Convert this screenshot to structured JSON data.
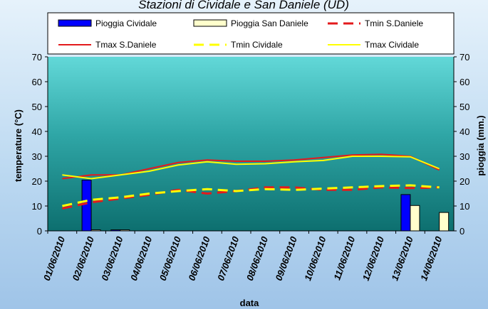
{
  "chart_data": {
    "type": "bar",
    "title": "Stazioni di Cividale e San Daniele (UD)",
    "xlabel": "data",
    "ylabel": "temperature (°C)",
    "y2label": "pioggia (mm.)",
    "ylim": [
      0,
      70
    ],
    "y2lim": [
      0,
      70
    ],
    "yticks": [
      0,
      10,
      20,
      30,
      40,
      50,
      60,
      70
    ],
    "categories": [
      "01/06/2010",
      "02/06/2010",
      "03/06/2010",
      "04/06/2010",
      "05/06/2010",
      "06/06/2010",
      "07/06/2010",
      "08/06/2010",
      "09/06/2010",
      "10/06/2010",
      "11/06/2010",
      "12/06/2010",
      "13/06/2010",
      "14/06/2010"
    ],
    "bar_series": [
      {
        "name": "Pioggia Cividale",
        "color": "#0000ff",
        "axis": "right",
        "values": [
          0,
          20.4,
          0.4,
          0,
          0,
          0,
          0,
          0,
          0,
          0,
          0,
          0,
          14.6,
          0
        ]
      },
      {
        "name": "Pioggia San Daniele",
        "color": "#ffffcc",
        "axis": "right",
        "values": [
          0,
          0.4,
          0.4,
          0,
          0,
          0,
          0,
          0,
          0,
          0,
          0,
          0,
          10.2,
          7.4
        ]
      }
    ],
    "line_series": [
      {
        "name": "Tmin S.Daniele",
        "color": "#e31a1c",
        "dash": true,
        "axis": "left",
        "values": [
          9.0,
          11.5,
          13.0,
          14.5,
          16.5,
          15.0,
          16.0,
          17.5,
          17.5,
          16.5,
          16.5,
          17.5,
          17.2,
          17.5
        ]
      },
      {
        "name": "Tmax S.Daniele",
        "color": "#e31a1c",
        "dash": false,
        "axis": "left",
        "values": [
          21.0,
          22.5,
          22.5,
          25.0,
          27.5,
          28.5,
          28.0,
          28.0,
          28.5,
          29.5,
          30.5,
          30.8,
          30.0,
          24.5
        ]
      },
      {
        "name": "Tmin Cividale",
        "color": "#ffff00",
        "dash": true,
        "axis": "left",
        "values": [
          10.0,
          12.5,
          13.5,
          15.0,
          16.0,
          16.8,
          16.0,
          16.8,
          16.5,
          17.0,
          17.5,
          18.0,
          18.3,
          17.5
        ]
      },
      {
        "name": "Tmax Cividale",
        "color": "#ffff00",
        "dash": false,
        "axis": "left",
        "values": [
          22.5,
          21.0,
          22.5,
          24.0,
          26.5,
          27.8,
          26.8,
          27.0,
          27.8,
          28.3,
          30.0,
          30.0,
          29.8,
          25.0
        ]
      }
    ],
    "legend": {
      "placement": "top",
      "entries": [
        "Pioggia Cividale",
        "Pioggia San Daniele",
        "Tmin S.Daniele",
        "Tmax S.Daniele",
        "Tmin Cividale",
        "Tmax Cividale"
      ]
    },
    "grid": false
  }
}
